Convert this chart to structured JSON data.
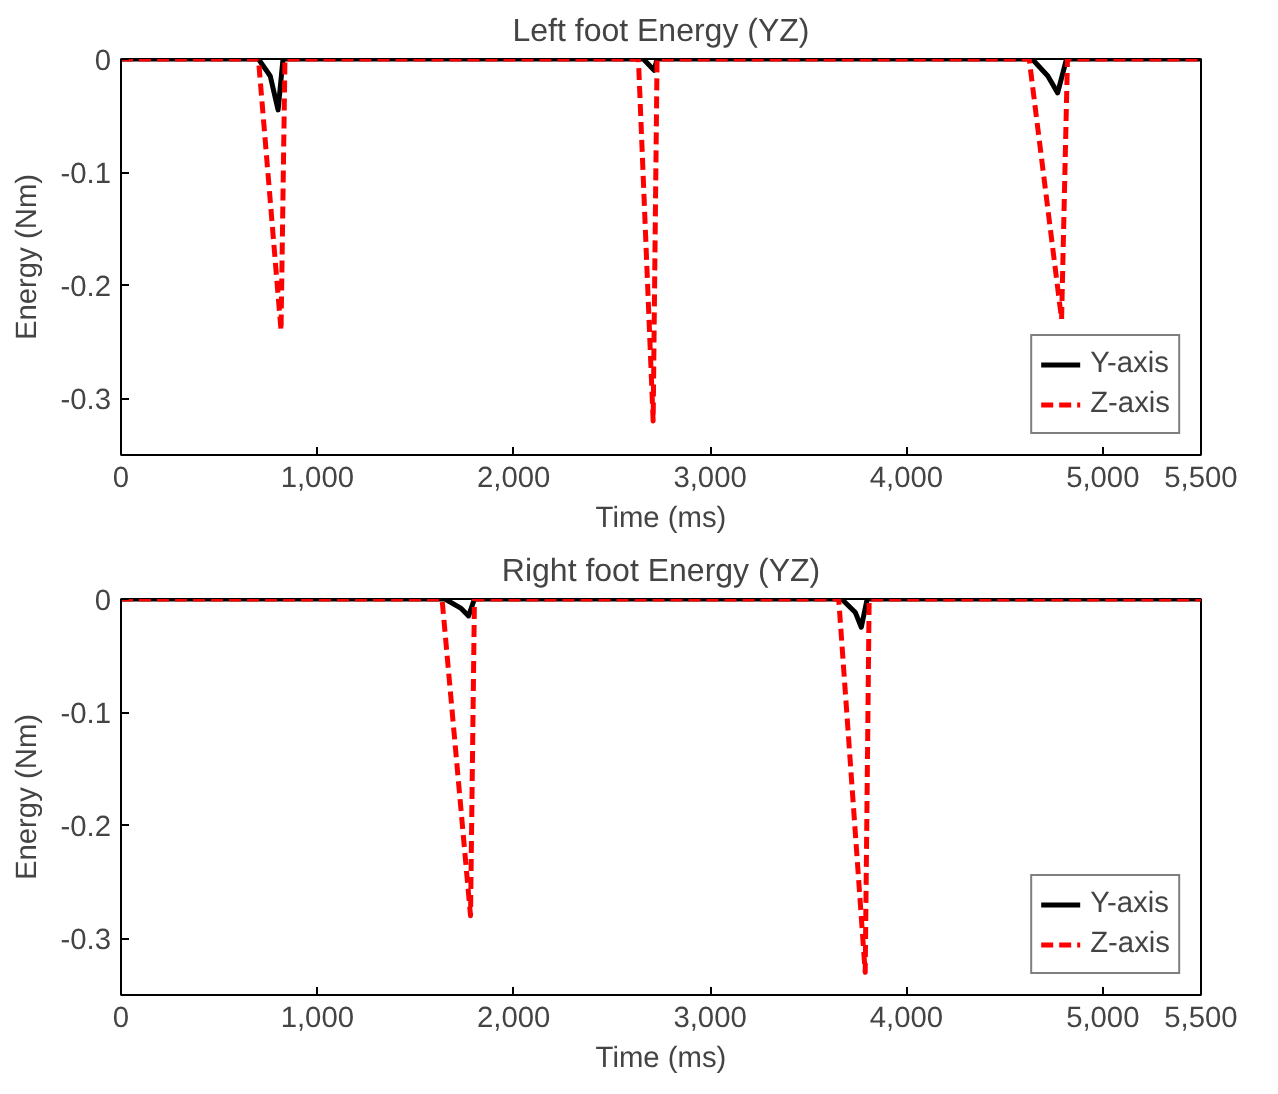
{
  "chart_data": [
    {
      "type": "line",
      "title": "Left foot Energy (YZ)",
      "xlabel": "Time (ms)",
      "ylabel": "Energy (Nm)",
      "xlim": [
        0,
        5500
      ],
      "ylim": [
        -0.35,
        0
      ],
      "xticks": [
        0,
        {
          "value": 1000,
          "label": "1,000"
        },
        {
          "value": 2000,
          "label": "2,000"
        },
        {
          "value": 3000,
          "label": "3,000"
        },
        {
          "value": 4000,
          "label": "4,000"
        },
        {
          "value": 5000,
          "label": "5,000"
        },
        {
          "value": 5500,
          "label": "5,500"
        }
      ],
      "yticks": [
        0,
        -0.1,
        -0.2,
        -0.3
      ],
      "grid": false,
      "legend": "bottom right",
      "series": [
        {
          "name": "Y-axis",
          "color": "#000000",
          "line_style": "solid",
          "x": [
            0,
            700,
            760,
            800,
            825,
            2660,
            2715,
            2730,
            4640,
            4720,
            4770,
            4815,
            5500
          ],
          "values": [
            0,
            0,
            -0.015,
            -0.045,
            0,
            0,
            -0.01,
            0,
            0,
            -0.015,
            -0.03,
            0,
            0
          ]
        },
        {
          "name": "Z-axis",
          "color": "#ff0000",
          "line_style": "dashed",
          "x": [
            0,
            700,
            815,
            835,
            2635,
            2710,
            2730,
            4625,
            4790,
            4820,
            5500
          ],
          "values": [
            0,
            0,
            -0.24,
            0,
            0,
            -0.32,
            0,
            0,
            -0.23,
            0,
            0
          ]
        }
      ]
    },
    {
      "type": "line",
      "title": "Right foot Energy (YZ)",
      "xlabel": "Time (ms)",
      "ylabel": "Energy (Nm)",
      "xlim": [
        0,
        5500
      ],
      "ylim": [
        -0.35,
        0
      ],
      "xticks": [
        0,
        {
          "value": 1000,
          "label": "1,000"
        },
        {
          "value": 2000,
          "label": "2,000"
        },
        {
          "value": 3000,
          "label": "3,000"
        },
        {
          "value": 4000,
          "label": "4,000"
        },
        {
          "value": 5000,
          "label": "5,000"
        },
        {
          "value": 5500,
          "label": "5,500"
        }
      ],
      "yticks": [
        0,
        -0.1,
        -0.2,
        -0.3
      ],
      "grid": false,
      "legend": "bottom right",
      "series": [
        {
          "name": "Y-axis",
          "color": "#000000",
          "line_style": "solid",
          "x": [
            0,
            1650,
            1730,
            1770,
            1800,
            3670,
            3740,
            3770,
            3800,
            5500
          ],
          "values": [
            0,
            0,
            -0.008,
            -0.015,
            0,
            0,
            -0.012,
            -0.025,
            0,
            0
          ]
        },
        {
          "name": "Z-axis",
          "color": "#ff0000",
          "line_style": "dashed",
          "x": [
            0,
            1635,
            1780,
            1800,
            3655,
            3790,
            3810,
            5500
          ],
          "values": [
            0,
            0,
            -0.28,
            0,
            0,
            -0.33,
            0,
            0
          ]
        }
      ]
    }
  ]
}
